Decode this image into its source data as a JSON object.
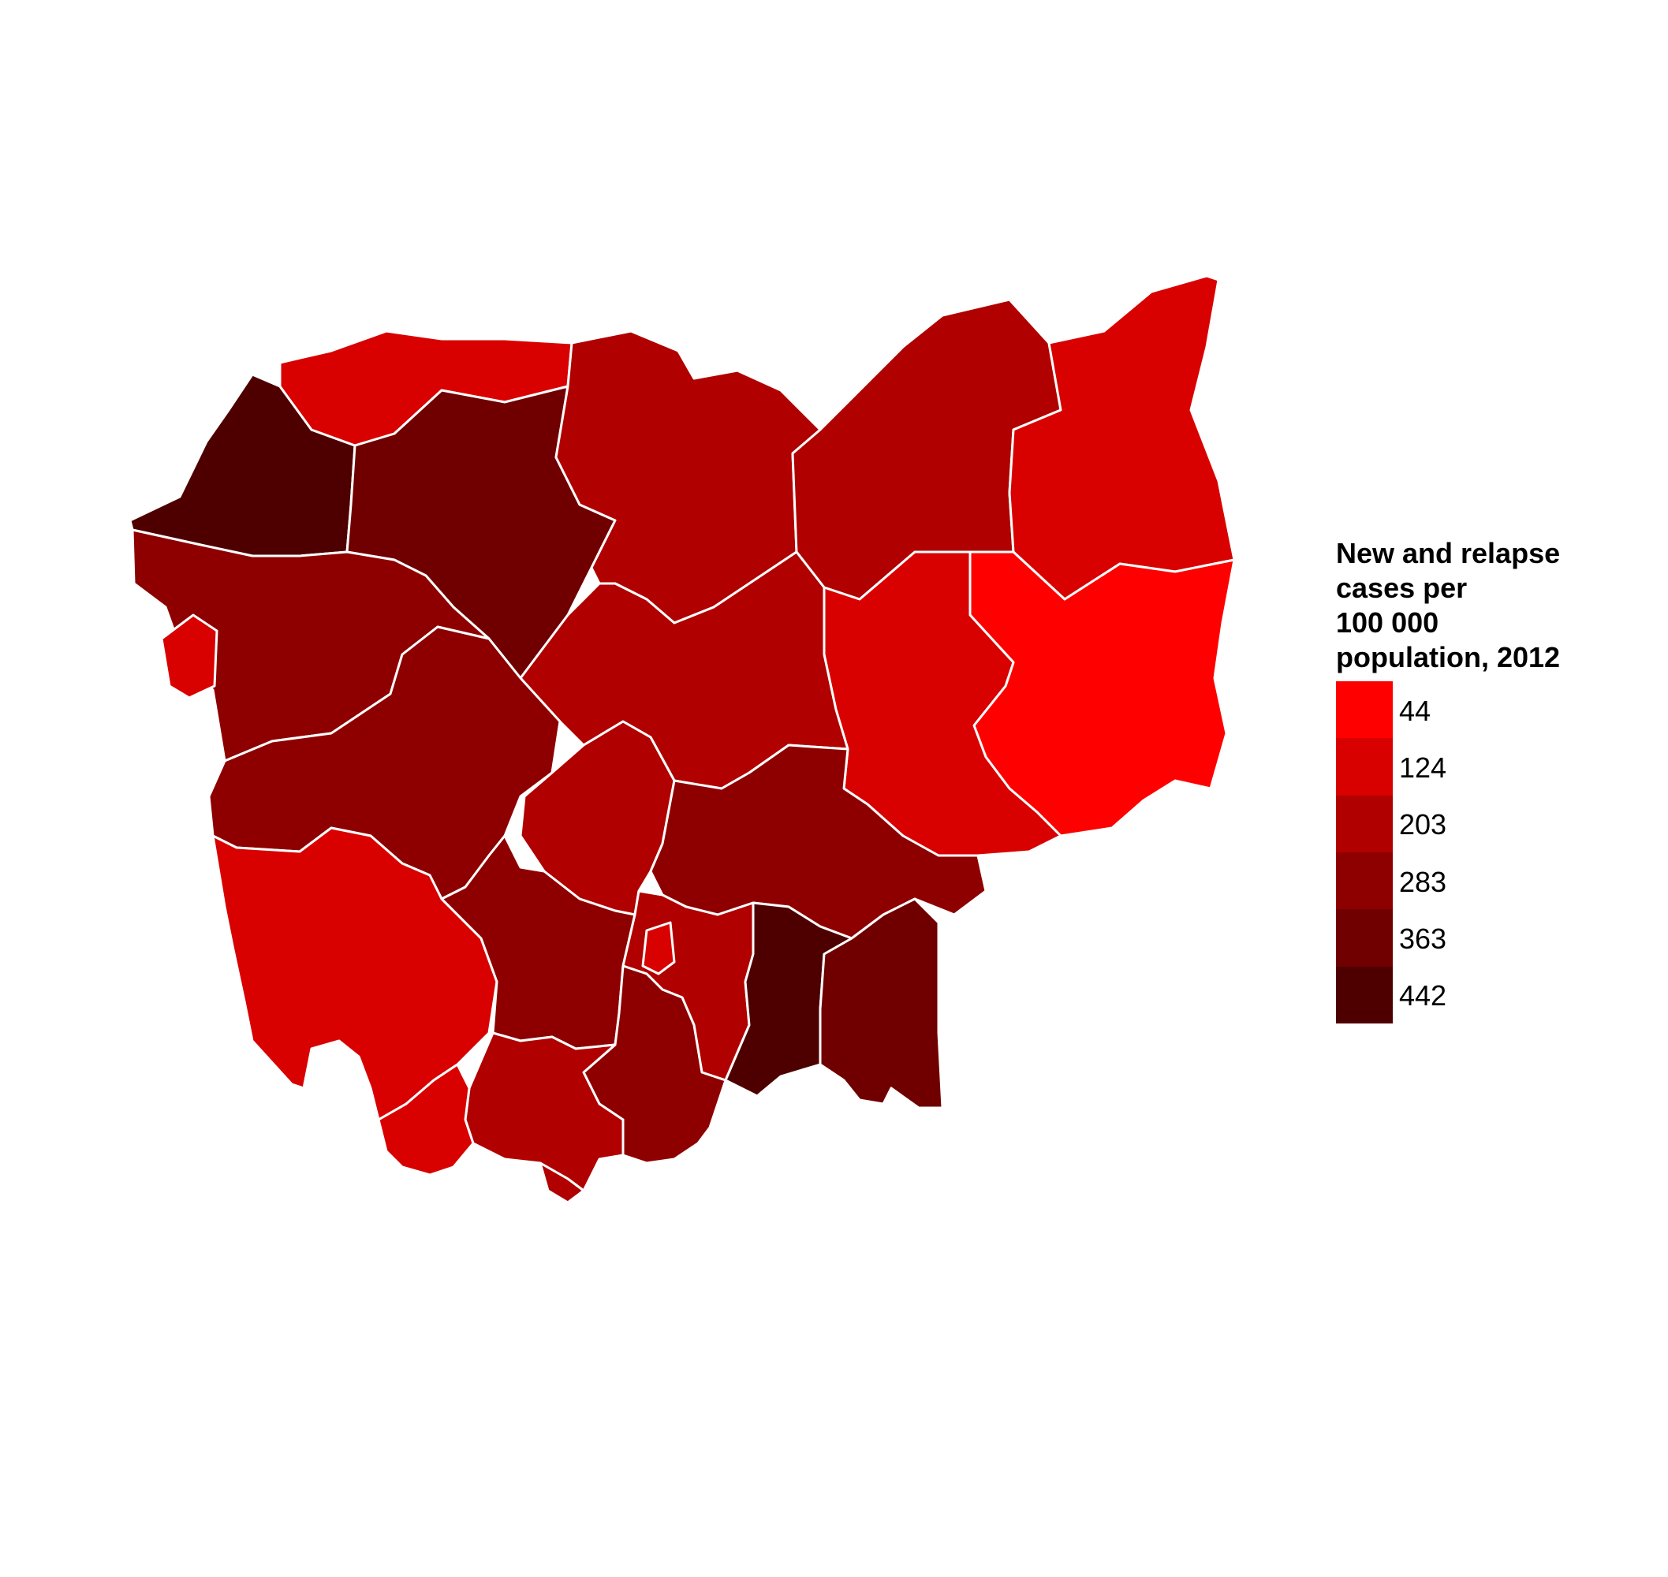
{
  "map": {
    "legend": {
      "title_lines": [
        "New and relapse",
        "cases per",
        "100 000",
        "population, 2012"
      ],
      "breaks": [
        {
          "label": "44",
          "value": 44,
          "color": "#ff0000"
        },
        {
          "label": "124",
          "value": 124,
          "color": "#d90000"
        },
        {
          "label": "203",
          "value": 203,
          "color": "#b00000"
        },
        {
          "label": "283",
          "value": 283,
          "color": "#8e0000"
        },
        {
          "label": "363",
          "value": 363,
          "color": "#700000"
        },
        {
          "label": "442",
          "value": 442,
          "color": "#4e0000"
        }
      ]
    },
    "border_color": "#ffffff",
    "provinces": [
      {
        "id": "banteay-meanchey",
        "value": 442
      },
      {
        "id": "oddar-meanchey",
        "value": 124
      },
      {
        "id": "siem-reap",
        "value": 363
      },
      {
        "id": "preah-vihear",
        "value": 203
      },
      {
        "id": "stung-treng",
        "value": 203
      },
      {
        "id": "ratanakiri",
        "value": 124
      },
      {
        "id": "mondulkiri",
        "value": 44
      },
      {
        "id": "kratie",
        "value": 124
      },
      {
        "id": "kampong-thom",
        "value": 203
      },
      {
        "id": "battambang",
        "value": 283
      },
      {
        "id": "pailin",
        "value": 124
      },
      {
        "id": "pursat",
        "value": 283
      },
      {
        "id": "kampong-chhnang",
        "value": 203
      },
      {
        "id": "kampong-cham",
        "value": 283
      },
      {
        "id": "koh-kong",
        "value": 124
      },
      {
        "id": "kampong-speu",
        "value": 283
      },
      {
        "id": "kandal",
        "value": 203
      },
      {
        "id": "phnom-penh",
        "value": 124
      },
      {
        "id": "prey-veng",
        "value": 442
      },
      {
        "id": "svay-rieng",
        "value": 363
      },
      {
        "id": "takeo",
        "value": 283
      },
      {
        "id": "kampot",
        "value": 203
      },
      {
        "id": "sihanoukville",
        "value": 124
      },
      {
        "id": "kep",
        "value": 203
      }
    ]
  }
}
